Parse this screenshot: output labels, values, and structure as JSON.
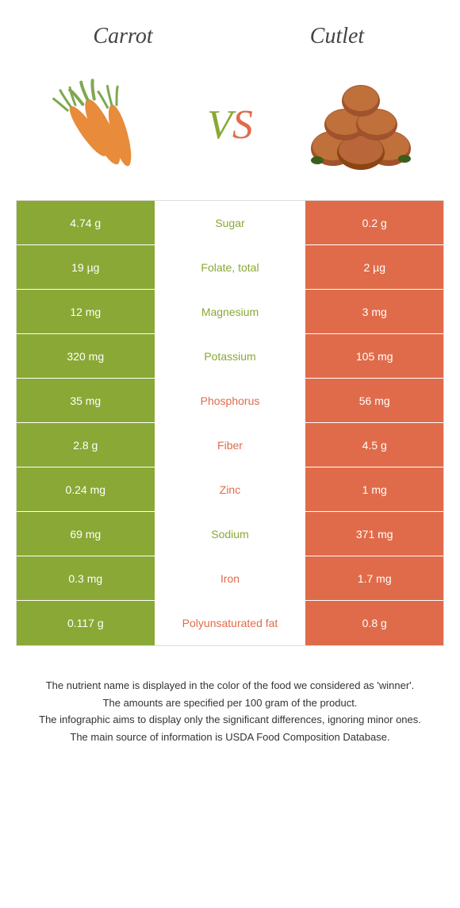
{
  "header": {
    "title_left": "Carrot",
    "title_right": "Cutlet",
    "vs_v": "V",
    "vs_s": "S"
  },
  "colors": {
    "left_bg": "#8aa835",
    "right_bg": "#e06b4a",
    "text_white": "#ffffff"
  },
  "rows": [
    {
      "left": "4.74 g",
      "label": "Sugar",
      "right": "0.2 g",
      "winner": "left"
    },
    {
      "left": "19 µg",
      "label": "Folate, total",
      "right": "2 µg",
      "winner": "left"
    },
    {
      "left": "12 mg",
      "label": "Magnesium",
      "right": "3 mg",
      "winner": "left"
    },
    {
      "left": "320 mg",
      "label": "Potassium",
      "right": "105 mg",
      "winner": "left"
    },
    {
      "left": "35 mg",
      "label": "Phosphorus",
      "right": "56 mg",
      "winner": "right"
    },
    {
      "left": "2.8 g",
      "label": "Fiber",
      "right": "4.5 g",
      "winner": "right"
    },
    {
      "left": "0.24 mg",
      "label": "Zinc",
      "right": "1 mg",
      "winner": "right"
    },
    {
      "left": "69 mg",
      "label": "Sodium",
      "right": "371 mg",
      "winner": "left"
    },
    {
      "left": "0.3 mg",
      "label": "Iron",
      "right": "1.7 mg",
      "winner": "right"
    },
    {
      "left": "0.117 g",
      "label": "Polyunsaturated fat",
      "right": "0.8 g",
      "winner": "right"
    }
  ],
  "footer": {
    "line1": "The nutrient name is displayed in the color of the food we considered as 'winner'.",
    "line2": "The amounts are specified per 100 gram of the product.",
    "line3": "The infographic aims to display only the significant differences, ignoring minor ones.",
    "line4": "The main source of information is USDA Food Composition Database."
  }
}
